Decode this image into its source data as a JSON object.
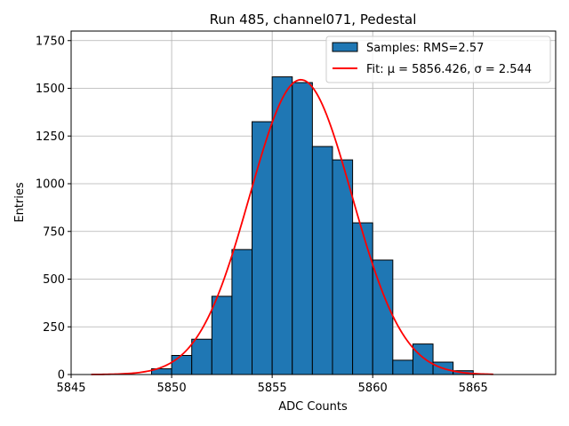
{
  "chart_data": {
    "type": "bar",
    "title": "Run 485, channel071, Pedestal",
    "xlabel": "ADC Counts",
    "ylabel": "Entries",
    "xlim": [
      5845,
      5869.1
    ],
    "ylim": [
      0,
      1800
    ],
    "xticks": [
      5845,
      5850,
      5855,
      5860,
      5865
    ],
    "yticks": [
      0,
      250,
      500,
      750,
      1000,
      1250,
      1500,
      1750
    ],
    "grid": true,
    "legend_position": "top-right",
    "bin_width": 1,
    "bins": [
      {
        "x0": 5849,
        "count": 30
      },
      {
        "x0": 5850,
        "count": 100
      },
      {
        "x0": 5851,
        "count": 185
      },
      {
        "x0": 5852,
        "count": 410
      },
      {
        "x0": 5853,
        "count": 655
      },
      {
        "x0": 5854,
        "count": 1325
      },
      {
        "x0": 5855,
        "count": 1560
      },
      {
        "x0": 5856,
        "count": 1530
      },
      {
        "x0": 5857,
        "count": 1195
      },
      {
        "x0": 5858,
        "count": 1125
      },
      {
        "x0": 5859,
        "count": 795
      },
      {
        "x0": 5860,
        "count": 600
      },
      {
        "x0": 5861,
        "count": 75
      },
      {
        "x0": 5862,
        "count": 160
      },
      {
        "x0": 5863,
        "count": 65
      },
      {
        "x0": 5864,
        "count": 20
      }
    ],
    "fit": {
      "mu": 5856.426,
      "sigma": 2.544,
      "peak": 1545,
      "x_range": [
        5846,
        5866
      ]
    },
    "series": [
      {
        "name": "Samples: RMS=2.57",
        "kind": "histogram",
        "color": "#1f77b4"
      },
      {
        "name": "Fit: μ = 5856.426, σ = 2.544",
        "kind": "line",
        "color": "#ff0000"
      }
    ]
  }
}
